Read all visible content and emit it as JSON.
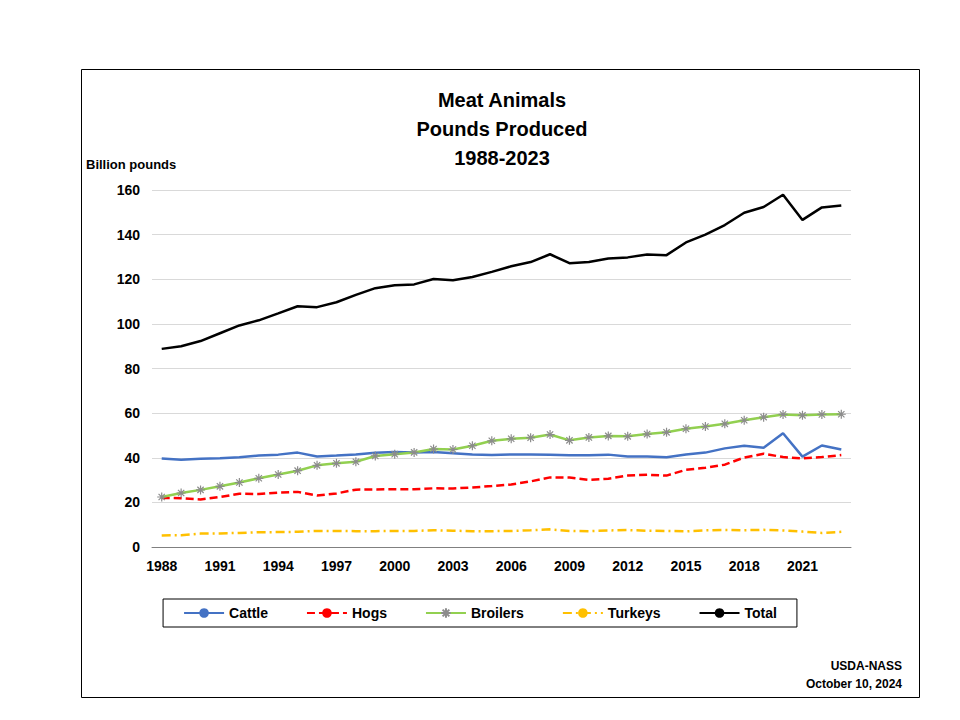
{
  "chart_data": {
    "type": "line",
    "title": "Meat Animals\nPounds Produced\n1988-2023",
    "y_label": "Billion pounds",
    "annotations": [
      "USDA-NASS",
      "October 10, 2024"
    ],
    "categories": [
      "1988",
      null,
      null,
      "1991",
      null,
      null,
      "1994",
      null,
      null,
      "1997",
      null,
      null,
      "2000",
      null,
      null,
      "2003",
      null,
      null,
      "2006",
      null,
      null,
      "2009",
      null,
      null,
      "2012",
      null,
      null,
      "2015",
      null,
      null,
      "2018",
      null,
      null,
      "2021",
      null,
      null
    ],
    "series": [
      {
        "name": "Cattle",
        "color": "#4472c4",
        "line_style": "solid",
        "marker": "none",
        "values": [
          39.7,
          39.1,
          39.5,
          39.8,
          40.2,
          41.0,
          41.4,
          42.3,
          40.6,
          41.0,
          41.5,
          42.2,
          42.6,
          42.4,
          42.6,
          42.0,
          41.5,
          41.2,
          41.5,
          41.5,
          41.4,
          41.1,
          41.1,
          41.4,
          40.6,
          40.6,
          40.2,
          41.5,
          42.3,
          44.2,
          45.4,
          44.5,
          51.0,
          40.5,
          45.5,
          43.7
        ]
      },
      {
        "name": "Hogs",
        "color": "#ff0000",
        "line_style": "dashed",
        "marker": "none",
        "values": [
          22.0,
          21.9,
          21.3,
          22.4,
          23.9,
          23.7,
          24.4,
          24.7,
          23.1,
          24.0,
          25.7,
          25.8,
          25.9,
          25.9,
          26.3,
          26.2,
          26.7,
          27.3,
          28.0,
          29.4,
          31.2,
          31.1,
          30.1,
          30.6,
          32.0,
          32.4,
          32.0,
          34.6,
          35.5,
          36.9,
          40.1,
          41.8,
          40.3,
          39.7,
          40.3,
          41.2
        ]
      },
      {
        "name": "Broilers",
        "color": "#92d050",
        "line_style": "solid",
        "marker": "asterisk",
        "values": [
          22.4,
          24.2,
          25.6,
          27.2,
          28.9,
          30.8,
          32.5,
          34.2,
          36.6,
          37.5,
          38.2,
          40.8,
          41.6,
          42.4,
          43.9,
          43.7,
          45.4,
          47.6,
          48.5,
          49.0,
          50.4,
          47.8,
          49.1,
          49.8,
          49.6,
          50.6,
          51.4,
          53.0,
          54.0,
          55.2,
          56.8,
          58.2,
          59.4,
          59.0,
          59.4,
          59.5
        ]
      },
      {
        "name": "Turkeys",
        "color": "#ffc000",
        "line_style": "dashdot",
        "marker": "none",
        "values": [
          5.2,
          5.3,
          6.0,
          6.1,
          6.3,
          6.6,
          6.7,
          6.8,
          7.2,
          7.2,
          7.1,
          7.1,
          7.2,
          7.2,
          7.5,
          7.3,
          7.1,
          7.1,
          7.2,
          7.5,
          7.9,
          7.2,
          7.1,
          7.4,
          7.6,
          7.3,
          7.2,
          7.0,
          7.5,
          7.6,
          7.5,
          7.7,
          7.4,
          6.9,
          6.3,
          6.8
        ]
      },
      {
        "name": "Total",
        "color": "#000000",
        "line_style": "solid",
        "marker": "none",
        "values": [
          88.8,
          90.0,
          92.3,
          95.8,
          99.3,
          101.6,
          104.7,
          107.9,
          107.5,
          109.7,
          113.0,
          116.0,
          117.3,
          117.7,
          120.1,
          119.6,
          121.0,
          123.3,
          125.8,
          127.7,
          131.2,
          127.2,
          127.7,
          129.3,
          129.8,
          131.1,
          130.8,
          136.5,
          140.0,
          144.3,
          149.8,
          152.4,
          157.9,
          146.6,
          152.2,
          153.1
        ]
      }
    ],
    "ylim": [
      0,
      160
    ],
    "yticks": [
      0,
      20,
      40,
      60,
      80,
      100,
      120,
      140,
      160
    ],
    "grid": true,
    "legend": "bottom"
  }
}
